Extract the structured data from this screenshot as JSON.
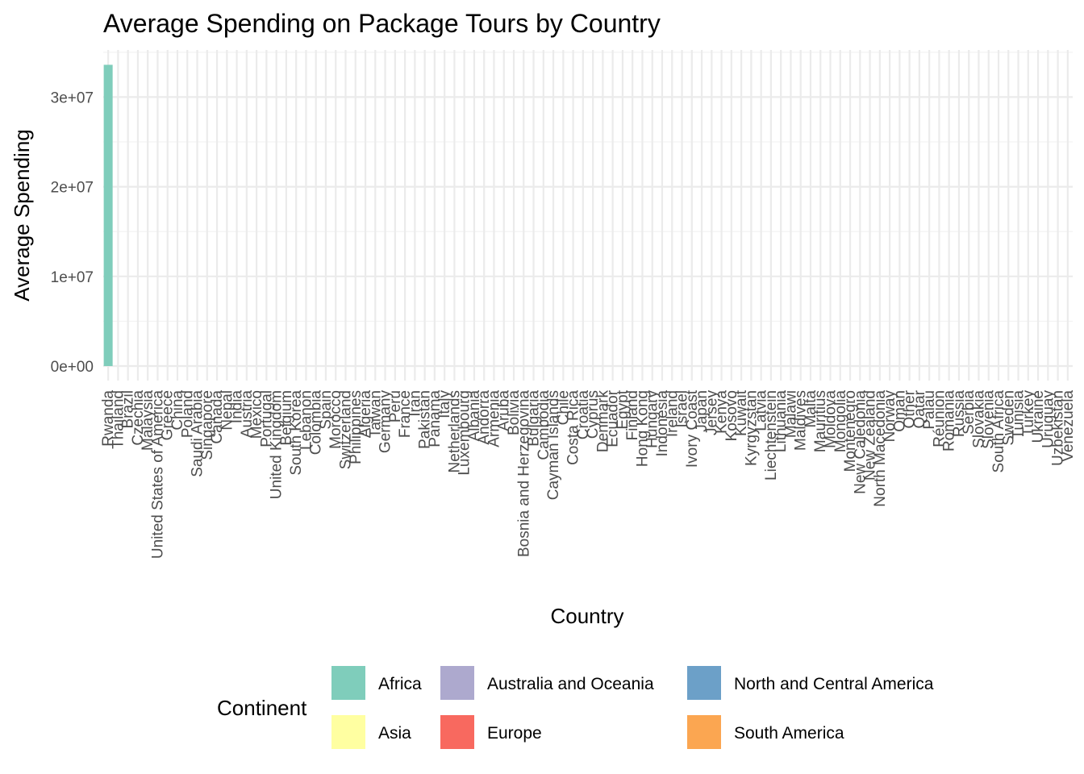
{
  "chart_data": {
    "type": "bar",
    "title": "Average Spending on Package Tours by Country",
    "xlabel": "Country",
    "ylabel": "Average Spending",
    "ylim": [
      0,
      34000000
    ],
    "y_ticks": [
      0,
      10000000,
      20000000,
      30000000
    ],
    "y_tick_labels": [
      "0e+00",
      "1e+07",
      "2e+07",
      "3e+07"
    ],
    "grid": true,
    "legend": {
      "title": "Continent",
      "position": "bottom",
      "entries": [
        {
          "label": "Africa",
          "color": "#7FCDBB"
        },
        {
          "label": "Asia",
          "color": "#FFFFA1"
        },
        {
          "label": "Australia and Oceania",
          "color": "#ADA9CE"
        },
        {
          "label": "Europe",
          "color": "#F8695F"
        },
        {
          "label": "North and Central America",
          "color": "#6CA0C8"
        },
        {
          "label": "South America",
          "color": "#FBA651"
        }
      ]
    },
    "categories": [
      "Rwanda",
      "Thailand",
      "Brazil",
      "Czechia",
      "Malaysia",
      "United States of America",
      "Greece",
      "China",
      "Poland",
      "Saudi Arabia",
      "Singapore",
      "Canada",
      "Nepal",
      "India",
      "Austria",
      "Mexico",
      "Portugal",
      "United Kingdom",
      "Belgium",
      "South Korea",
      "Lebanon",
      "Colombia",
      "Spain",
      "Morocco",
      "Switzerland",
      "Philippines",
      "Algeria",
      "Taiwan",
      "Germany",
      "Peru",
      "France",
      "Iran",
      "Pakistan",
      "Panama",
      "Italy",
      "Netherlands",
      "Luxembourg",
      "Albania",
      "Andorra",
      "Armenia",
      "Aruba",
      "Bolivia",
      "Bosnia and Herzegovina",
      "Bulgaria",
      "Cambodia",
      "Cayman Islands",
      "Chile",
      "Costa Rica",
      "Croatia",
      "Cyprus",
      "Denmark",
      "Ecuador",
      "Egypt",
      "Finland",
      "Hong Kong",
      "Hungary",
      "Indonesia",
      "Ireland",
      "Israel",
      "Ivory Coast",
      "Japan",
      "Jersey",
      "Kenya",
      "Kosovo",
      "Kuwait",
      "Kyrgyzstan",
      "Latvia",
      "Liechtenstein",
      "Lithuania",
      "Malawi",
      "Maldives",
      "Malta",
      "Mauritius",
      "Moldova",
      "Mongolia",
      "Montenegro",
      "New Caledonia",
      "New Zealand",
      "North Macedonia",
      "Norway",
      "Oman",
      "Other",
      "Qatar",
      "Palau",
      "Réunion",
      "Romania",
      "Russia",
      "Serbia",
      "Slovakia",
      "Slovenia",
      "South Africa",
      "Sweden",
      "Tunisia",
      "Turkey",
      "Ukraine",
      "Uruguay",
      "Uzbekistan",
      "Venezuela"
    ],
    "values": [
      33600000,
      0,
      0,
      0,
      0,
      0,
      0,
      0,
      0,
      0,
      0,
      0,
      0,
      0,
      0,
      0,
      0,
      0,
      0,
      0,
      0,
      0,
      0,
      0,
      0,
      0,
      0,
      0,
      0,
      0,
      0,
      0,
      0,
      0,
      0,
      0,
      0,
      0,
      0,
      0,
      0,
      0,
      0,
      0,
      0,
      0,
      0,
      0,
      0,
      0,
      0,
      0,
      0,
      0,
      0,
      0,
      0,
      0,
      0,
      0,
      0,
      0,
      0,
      0,
      0,
      0,
      0,
      0,
      0,
      0,
      0,
      0,
      0,
      0,
      0,
      0,
      0,
      0,
      0,
      0,
      0,
      0,
      0,
      0,
      0,
      0,
      0,
      0,
      0,
      0,
      0,
      0,
      0,
      0,
      0,
      0,
      0,
      0
    ],
    "bar_continent": [
      "Africa"
    ]
  }
}
